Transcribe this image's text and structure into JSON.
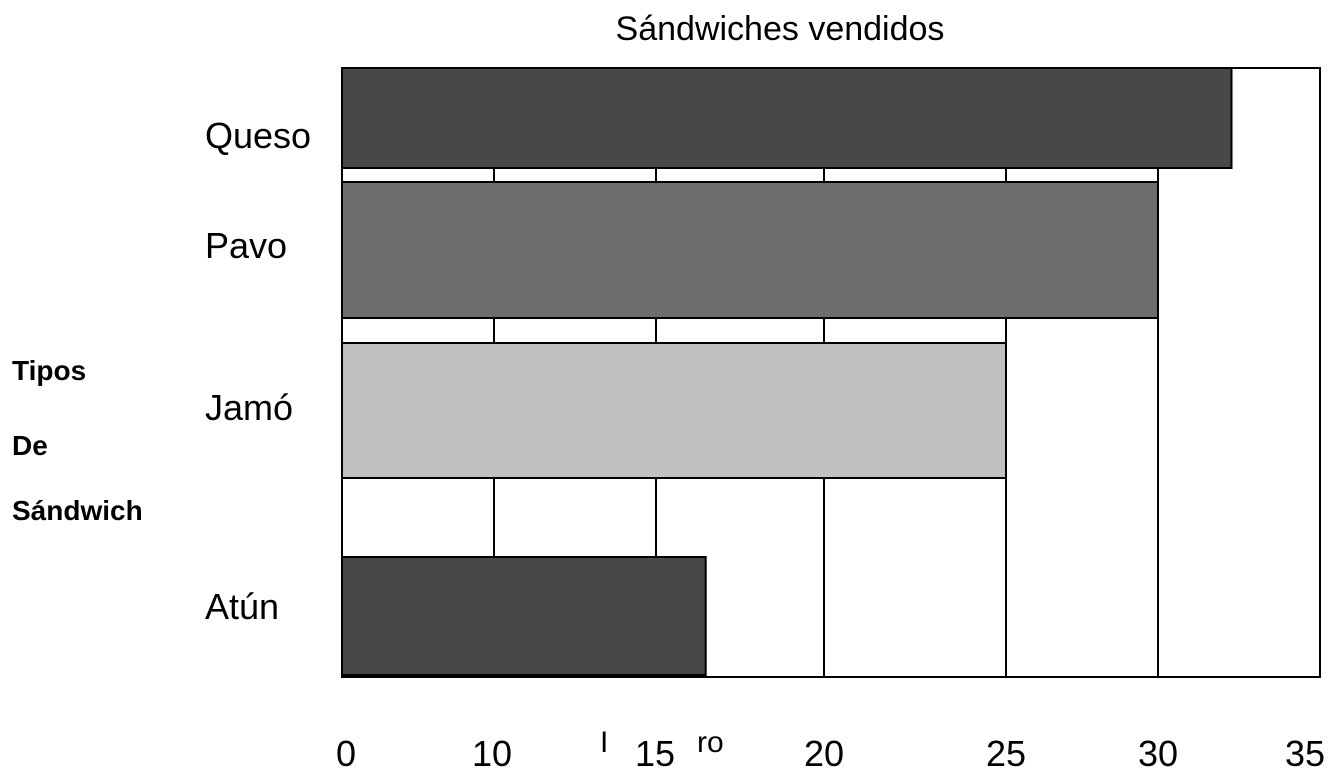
{
  "chart_data": {
    "type": "bar",
    "orientation": "horizontal",
    "title": "Sándwiches vendidos",
    "ylabel_lines": [
      "Tipos",
      "De",
      "Sándwich"
    ],
    "xlabel_fragments": [
      "I",
      "ro"
    ],
    "categories": [
      "Queso",
      "Pavo",
      "Jamó",
      "Atún"
    ],
    "values": [
      32.5,
      30,
      25,
      16.5
    ],
    "colors": [
      "#484848",
      "#6e6e6e",
      "#c0c0c0",
      "#484848"
    ],
    "x_ticks": [
      0,
      10,
      15,
      20,
      25,
      30,
      35
    ],
    "grid": "vertical",
    "xlim": [
      0,
      35
    ]
  }
}
